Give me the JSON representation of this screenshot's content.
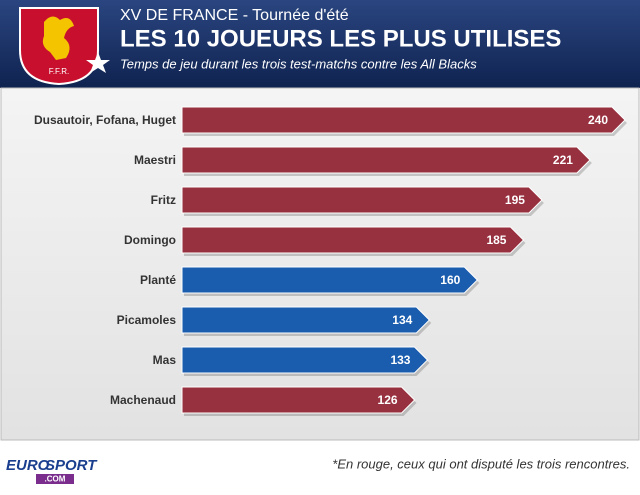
{
  "header": {
    "kicker": "XV DE FRANCE - Tournée d'été",
    "title": "LES 10 JOUEURS LES PLUS UTILISES",
    "subtitle": "Temps de jeu durant les trois test-matchs contre les All Blacks",
    "logo_text": "F.F.R."
  },
  "chart_data": {
    "type": "bar",
    "orientation": "horizontal",
    "categories": [
      "Dusautoir, Fofana, Huget",
      "Maestri",
      "Fritz",
      "Domingo",
      "Planté",
      "Picamoles",
      "Mas",
      "Machenaud"
    ],
    "values": [
      240,
      221,
      195,
      185,
      160,
      134,
      133,
      126
    ],
    "colors": [
      "#97303f",
      "#97303f",
      "#97303f",
      "#97303f",
      "#1a5cad",
      "#1a5cad",
      "#1a5cad",
      "#97303f"
    ]
  },
  "footer": {
    "note": "*En rouge, ceux qui ont disputé les trois rencontres.",
    "brand": [
      "EURO",
      "SPORT",
      ".COM"
    ]
  }
}
